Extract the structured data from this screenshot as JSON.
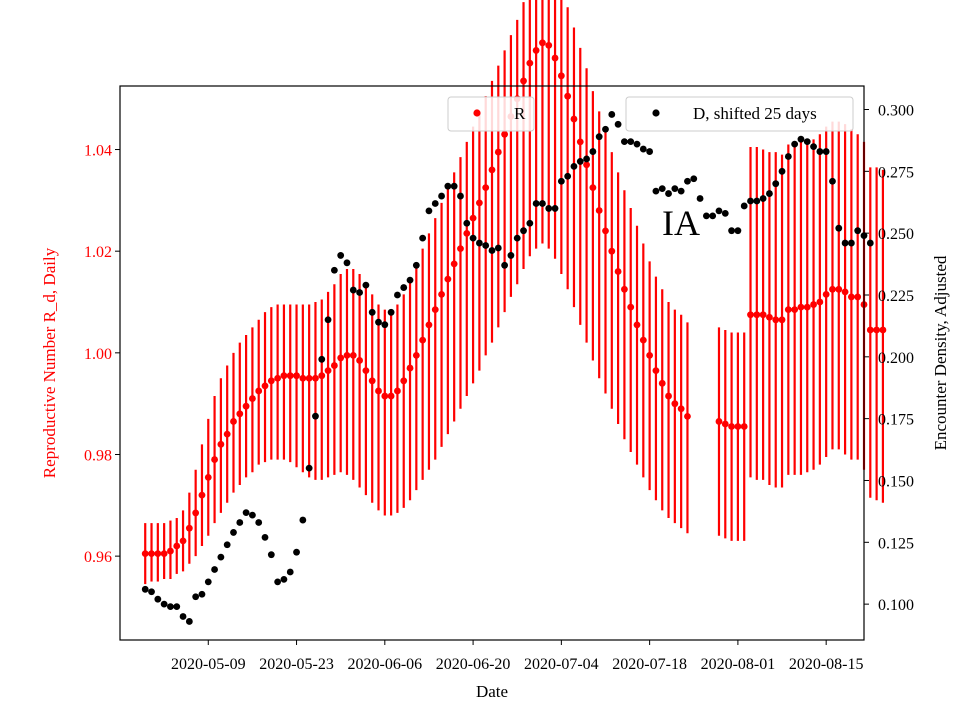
{
  "chart_data": {
    "type": "scatter",
    "annotation": "IA",
    "xlabel": "Date",
    "ylabel_left": "Reproductive Number R_d, Daily",
    "ylabel_right": "Encounter Density, Adjusted",
    "x_ticks": [
      "2020-05-09",
      "2020-05-23",
      "2020-06-06",
      "2020-06-20",
      "2020-07-04",
      "2020-07-18",
      "2020-08-01",
      "2020-08-15"
    ],
    "y_left_ticks": [
      "0.96",
      "0.98",
      "1.00",
      "1.02",
      "1.04"
    ],
    "y_right_ticks": [
      "0.100",
      "0.125",
      "0.150",
      "0.175",
      "0.200",
      "0.225",
      "0.250",
      "0.275",
      "0.300"
    ],
    "xlim": [
      "2020-04-25",
      "2020-08-21"
    ],
    "ylim_left": [
      0.9435,
      1.0525
    ],
    "ylim_right": [
      0.0855,
      0.3095
    ],
    "legend_left": "top-center",
    "legend_right": "top-right",
    "grid": false,
    "colors": {
      "R": "#ff0000",
      "D": "#000000",
      "left_axis_text": "#ff0000"
    },
    "series": [
      {
        "name": "R",
        "axis": "left",
        "color": "#ff0000",
        "x_start": "2020-04-29",
        "values": [
          0.9605,
          0.9605,
          0.9605,
          0.9605,
          0.961,
          0.962,
          0.963,
          0.9655,
          0.9685,
          0.972,
          0.9755,
          0.979,
          0.982,
          0.984,
          0.9865,
          0.988,
          0.9895,
          0.991,
          0.9925,
          0.9935,
          0.9945,
          0.995,
          0.9955,
          0.9955,
          0.9955,
          0.995,
          0.995,
          0.995,
          0.9955,
          0.9965,
          0.9975,
          0.999,
          0.9995,
          0.9995,
          0.9985,
          0.9965,
          0.9945,
          0.9925,
          0.9915,
          0.9915,
          0.9925,
          0.9945,
          0.997,
          0.9995,
          1.0025,
          1.0055,
          1.0085,
          1.0115,
          1.0145,
          1.0175,
          1.0205,
          1.0235,
          1.0265,
          1.0295,
          1.0325,
          1.036,
          1.0395,
          1.043,
          1.0465,
          1.05,
          1.0535,
          1.057,
          1.0595,
          1.061,
          1.0605,
          1.058,
          1.0545,
          1.0505,
          1.046,
          1.0415,
          1.037,
          1.0325,
          1.028,
          1.024,
          1.02,
          1.016,
          1.0125,
          1.009,
          1.0055,
          1.0025,
          0.9995,
          0.9965,
          0.994,
          0.9915,
          0.99,
          0.989,
          0.9875,
          0.9865,
          0.986,
          0.9855,
          0.9855,
          0.9855,
          1.0075,
          1.0075,
          1.0075,
          1.007,
          1.0065,
          1.0065,
          1.0085,
          1.0085,
          1.009,
          1.009,
          1.0095,
          1.01,
          1.0115,
          1.0125,
          1.0125,
          1.012,
          1.011,
          1.011,
          1.0095,
          1.0045,
          1.0045,
          1.0045
        ],
        "error_low": [
          0.9545,
          0.955,
          0.955,
          0.9555,
          0.9555,
          0.9565,
          0.957,
          0.9585,
          0.96,
          0.962,
          0.964,
          0.9665,
          0.9685,
          0.9705,
          0.9725,
          0.974,
          0.9755,
          0.9765,
          0.978,
          0.9785,
          0.979,
          0.979,
          0.979,
          0.9785,
          0.9775,
          0.9765,
          0.9755,
          0.975,
          0.975,
          0.9755,
          0.976,
          0.9765,
          0.976,
          0.975,
          0.9735,
          0.972,
          0.9705,
          0.969,
          0.968,
          0.968,
          0.9685,
          0.9695,
          0.971,
          0.973,
          0.975,
          0.977,
          0.979,
          0.9815,
          0.984,
          0.9865,
          0.989,
          0.9915,
          0.994,
          0.9965,
          0.9995,
          1.002,
          1.005,
          1.008,
          1.011,
          1.0135,
          1.0165,
          1.019,
          1.0205,
          1.0215,
          1.0205,
          1.0185,
          1.0155,
          1.0125,
          1.009,
          1.0055,
          1.002,
          0.9985,
          0.995,
          0.992,
          0.989,
          0.986,
          0.983,
          0.9805,
          0.978,
          0.9755,
          0.973,
          0.971,
          0.969,
          0.9675,
          0.9665,
          0.9655,
          0.9645,
          0.964,
          0.9635,
          0.963,
          0.963,
          0.963,
          0.9755,
          0.975,
          0.975,
          0.974,
          0.9735,
          0.9735,
          0.976,
          0.976,
          0.976,
          0.9765,
          0.977,
          0.978,
          0.9795,
          0.981,
          0.981,
          0.98,
          0.979,
          0.979,
          0.977,
          0.9715,
          0.971,
          0.9705
        ],
        "error_high": [
          0.9665,
          0.9665,
          0.9665,
          0.9665,
          0.967,
          0.9675,
          0.969,
          0.9725,
          0.977,
          0.982,
          0.987,
          0.9915,
          0.995,
          0.9975,
          1.0,
          1.002,
          1.0035,
          1.005,
          1.0065,
          1.008,
          1.009,
          1.0095,
          1.0095,
          1.0095,
          1.0095,
          1.0095,
          1.0095,
          1.01,
          1.0105,
          1.012,
          1.0135,
          1.0155,
          1.0165,
          1.0165,
          1.0155,
          1.0135,
          1.0115,
          1.0095,
          1.0085,
          1.0085,
          1.0095,
          1.0115,
          1.0145,
          1.0175,
          1.0205,
          1.0235,
          1.0265,
          1.0295,
          1.0325,
          1.0355,
          1.0385,
          1.0415,
          1.0445,
          1.0475,
          1.0505,
          1.0535,
          1.0565,
          1.0595,
          1.0625,
          1.0655,
          1.069,
          1.072,
          1.0745,
          1.0765,
          1.0765,
          1.0745,
          1.0715,
          1.068,
          1.064,
          1.06,
          1.056,
          1.0515,
          1.0475,
          1.0435,
          1.0395,
          1.0355,
          1.032,
          1.0285,
          1.025,
          1.0215,
          1.018,
          1.015,
          1.0125,
          1.01,
          1.0085,
          1.0075,
          1.006,
          1.005,
          1.0045,
          1.004,
          1.004,
          1.004,
          1.0405,
          1.0405,
          1.04,
          1.0395,
          1.0395,
          1.039,
          1.041,
          1.0415,
          1.042,
          1.042,
          1.042,
          1.043,
          1.0445,
          1.0455,
          1.0455,
          1.045,
          1.044,
          1.043,
          1.0415,
          1.0365,
          1.0365,
          1.036
        ],
        "x_gaps": [
          [
            "2020-07-25",
            "2020-07-28"
          ]
        ]
      },
      {
        "name": "D, shifted 25 days",
        "axis": "right",
        "color": "#000000",
        "x_start": "2020-04-29",
        "values": [
          0.106,
          0.105,
          0.102,
          0.1,
          0.099,
          0.099,
          0.095,
          0.093,
          0.103,
          0.104,
          0.109,
          0.114,
          0.119,
          0.124,
          0.129,
          0.133,
          0.137,
          0.136,
          0.133,
          0.127,
          0.12,
          0.109,
          0.11,
          0.113,
          0.121,
          0.134,
          0.155,
          0.176,
          0.199,
          0.215,
          0.235,
          0.241,
          0.238,
          0.227,
          0.226,
          0.229,
          0.218,
          0.214,
          0.213,
          0.218,
          0.225,
          0.228,
          0.231,
          0.237,
          0.248,
          0.259,
          0.262,
          0.265,
          0.269,
          0.269,
          0.265,
          0.254,
          0.248,
          0.246,
          0.245,
          0.243,
          0.244,
          0.237,
          0.241,
          0.248,
          0.251,
          0.254,
          0.262,
          0.262,
          0.26,
          0.26,
          0.271,
          0.273,
          0.277,
          0.279,
          0.28,
          0.283,
          0.289,
          0.292,
          0.298,
          0.294,
          0.287,
          0.287,
          0.286,
          0.284,
          0.283,
          0.267,
          0.268,
          0.266,
          0.268,
          0.267,
          0.271,
          0.272,
          0.264,
          0.257,
          0.257,
          0.259,
          0.258,
          0.251,
          0.251,
          0.261,
          0.263,
          0.263,
          0.264,
          0.266,
          0.27,
          0.275,
          0.281,
          0.286,
          0.288,
          0.287,
          0.285,
          0.283,
          0.283,
          0.271,
          0.252,
          0.246,
          0.246,
          0.251,
          0.249,
          0.246
        ],
        "x_skip": []
      }
    ]
  }
}
